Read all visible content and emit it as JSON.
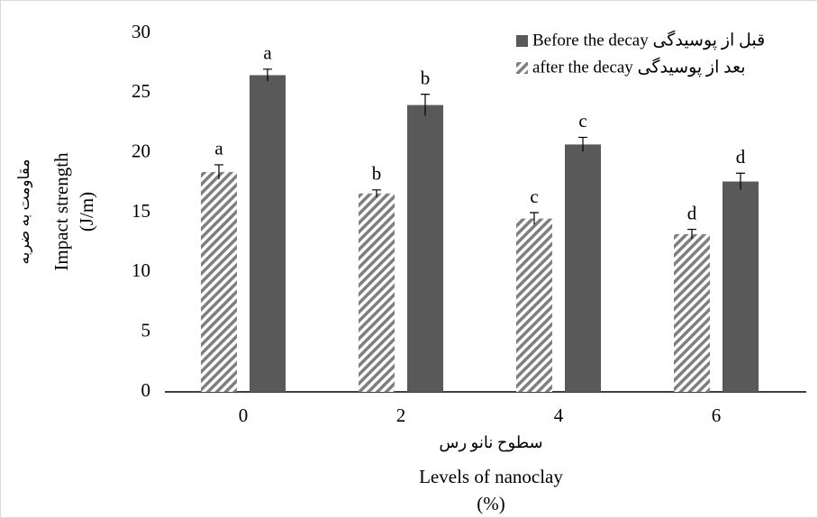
{
  "chart_data": {
    "type": "bar",
    "ylabel": [
      "Impact strength",
      "(J/m)"
    ],
    "ylabel_fa": "مقاومت به ضربه",
    "xlabel_fa": "سطوح نانو رس",
    "xlabel": [
      "Levels of nanoclay",
      "(%)"
    ],
    "categories": [
      "0",
      "2",
      "4",
      "6"
    ],
    "series": [
      {
        "name": "after the decay بعد از پوسیدگی",
        "color": "#7f7f7f",
        "hatch": true,
        "values": [
          18.4,
          16.6,
          14.5,
          13.2
        ],
        "errors": [
          0.6,
          0.3,
          0.5,
          0.4
        ],
        "letters": [
          "a",
          "b",
          "c",
          "d"
        ]
      },
      {
        "name": "Before the decay قبل از پوسیدگی",
        "color": "#595959",
        "hatch": false,
        "values": [
          26.5,
          24.0,
          20.7,
          17.6
        ],
        "errors": [
          0.5,
          0.9,
          0.6,
          0.7
        ],
        "letters": [
          "a",
          "b",
          "c",
          "d"
        ]
      }
    ],
    "legend_order": [
      1,
      0
    ],
    "legend": "top-right",
    "ylim": [
      0,
      30
    ],
    "yticks": [
      0,
      5,
      10,
      15,
      20,
      25,
      30
    ],
    "grid": false
  }
}
